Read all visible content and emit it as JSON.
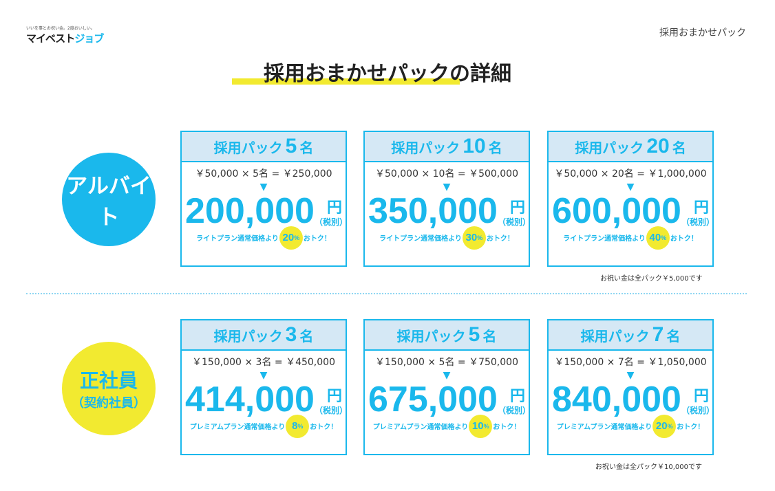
{
  "logo": {
    "tagline": "いいを事とお祝い金。2度おいしい。",
    "name_a": "マイベスト",
    "name_b": "ジョブ"
  },
  "header": {
    "label": "採用おまかせパック"
  },
  "title": "採用おまかせパックの詳細",
  "arbeit": {
    "label": "アルバイト",
    "footnote": "お祝い金は全パック￥5,000です",
    "cards": [
      {
        "head_a": "採用パック",
        "num": "5",
        "head_b": "名",
        "formula": "￥50,000 × 5名 = ￥250,000",
        "amount": "200,000",
        "yen": "円",
        "tax": "（税別）",
        "note_a": "ライトプラン通常価格より",
        "pct": "20",
        "note_b": "おトク！"
      },
      {
        "head_a": "採用パック",
        "num": "10",
        "head_b": "名",
        "formula": "￥50,000 × 10名 = ￥500,000",
        "amount": "350,000",
        "yen": "円",
        "tax": "（税別）",
        "note_a": "ライトプラン通常価格より",
        "pct": "30",
        "note_b": "おトク！"
      },
      {
        "head_a": "採用パック",
        "num": "20",
        "head_b": "名",
        "formula": "￥50,000 × 20名 = ￥1,000,000",
        "amount": "600,000",
        "yen": "円",
        "tax": "（税別）",
        "note_a": "ライトプラン通常価格より",
        "pct": "40",
        "note_b": "おトク！"
      }
    ]
  },
  "seishain": {
    "label": "正社員",
    "sub": "（契約社員）",
    "footnote": "お祝い金は全パック￥10,000です",
    "cards": [
      {
        "head_a": "採用パック",
        "num": "3",
        "head_b": "名",
        "formula": "￥150,000 × 3名 = ￥450,000",
        "amount": "414,000",
        "yen": "円",
        "tax": "（税別）",
        "note_a": "プレミアムプラン通常価格より",
        "pct": "8",
        "note_b": "おトク！"
      },
      {
        "head_a": "採用パック",
        "num": "5",
        "head_b": "名",
        "formula": "￥150,000 × 5名 = ￥750,000",
        "amount": "675,000",
        "yen": "円",
        "tax": "（税別）",
        "note_a": "プレミアムプラン通常価格より",
        "pct": "10",
        "note_b": "おトク！"
      },
      {
        "head_a": "採用パック",
        "num": "7",
        "head_b": "名",
        "formula": "￥150,000 × 7名 = ￥1,050,000",
        "amount": "840,000",
        "yen": "円",
        "tax": "（税別）",
        "note_a": "プレミアムプラン通常価格より",
        "pct": "20",
        "note_b": "おトク！"
      }
    ]
  },
  "percent_sign": "%",
  "colors": {
    "accent": "#1ab8ec",
    "yellow": "#f2ea30",
    "header_bg": "#d5e8f5"
  }
}
